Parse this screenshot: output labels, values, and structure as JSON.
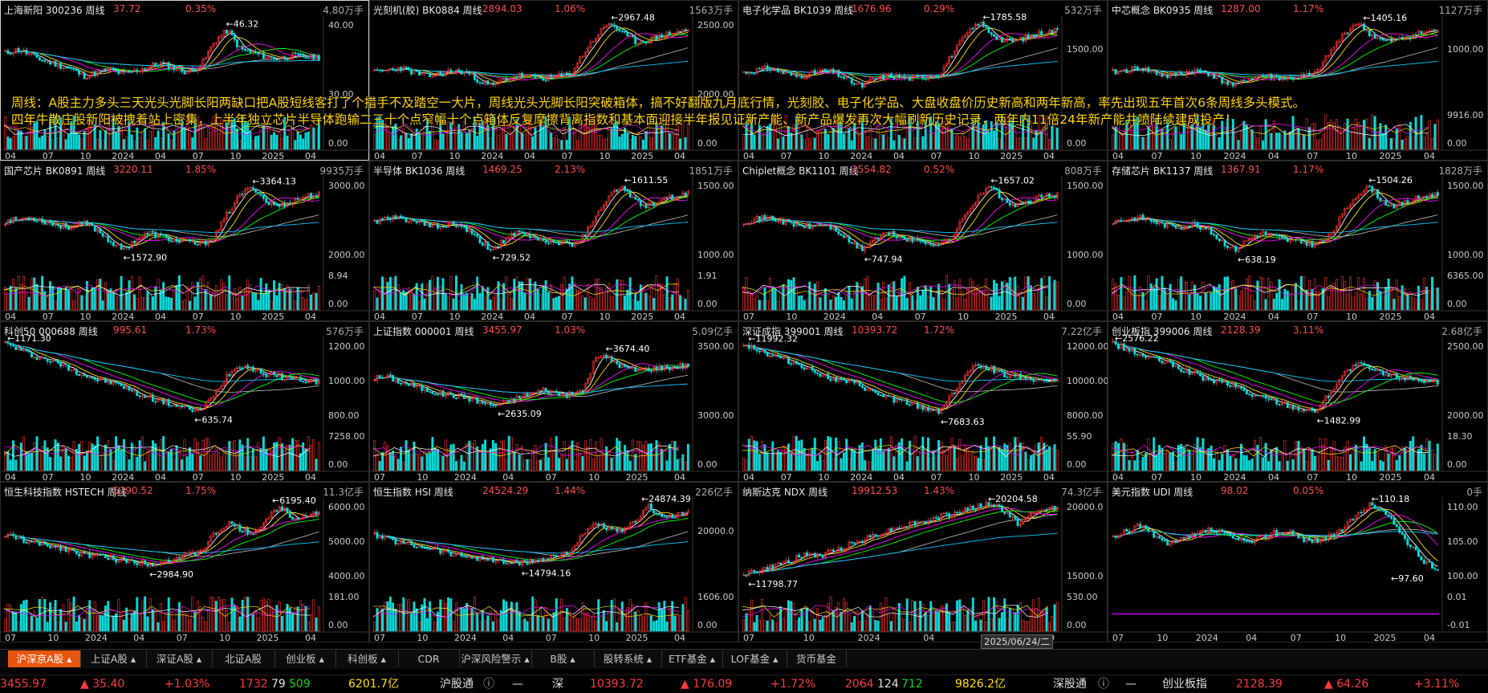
{
  "colors": {
    "up": "#ff3030",
    "down": "#00dcdc",
    "ma5": "#ffffff",
    "ma10": "#ffe000",
    "ma20": "#ff00ff",
    "ma30": "#00ff00",
    "ma60": "#aaaaaa",
    "ma120": "#00c8ff",
    "overlay_text": "#ffd400",
    "active_tab": "#e8550f"
  },
  "overlay": {
    "line1": "周线：A股主力多头三天光头光脚长阳两缺口把A股短线客打了个措手不及踏空一大片，周线光头光脚长阳突破箱体，搞不好翻版九月底行情，光刻胶、电子化学品、大盘收盘价历史新高和两年新高，率先出现五年首次6条周线多头模式。",
    "line2": "四年牛散庄股新阳被拽着站上密集，上半年独立芯片半导体跑输二三十个点窄幅十个点箱体反复摩擦背离指数和基本面迎接半年报见证新产能、新产品爆发再次大幅刷新历史记录，两年内11倍24年新产能井喷陆续建成投产！"
  },
  "panels": [
    {
      "name": "上海新阳  300236  周线",
      "price": "37.72",
      "pct": "0.35%",
      "vol": "4.80万手",
      "axis": [
        "40.00",
        "30.00"
      ],
      "vol_axis": [
        "0.00"
      ],
      "hi_label": "46.32",
      "lo_label": "",
      "x_labels": [
        "04",
        "07",
        "10",
        "2024",
        "04",
        "07",
        "10",
        "2025",
        "04"
      ],
      "shape": "a",
      "seed": 11
    },
    {
      "name": "光刻机(胶)  BK0884  周线",
      "price": "2894.03",
      "pct": "1.06%",
      "vol": "1563万手",
      "axis": [
        "2500.00",
        "2000.00"
      ],
      "vol_axis": [
        "0.00"
      ],
      "hi_label": "2967.48",
      "lo_label": "",
      "x_labels": [
        "04",
        "07",
        "10",
        "2024",
        "04",
        "07",
        "10",
        "2025",
        "04"
      ],
      "shape": "b",
      "seed": 23
    },
    {
      "name": "电子化学品  BK1039  周线",
      "price": "1676.96",
      "pct": "0.29%",
      "vol": "532万手",
      "axis": [
        "1500.00"
      ],
      "vol_axis": [
        "0.00"
      ],
      "hi_label": "1785.58",
      "lo_label": "",
      "x_labels": [
        "04",
        "07",
        "10",
        "2024",
        "04",
        "07",
        "10",
        "2025",
        "04"
      ],
      "shape": "b",
      "seed": 31
    },
    {
      "name": "中芯概念  BK0935  周线",
      "price": "1287.00",
      "pct": "1.17%",
      "vol": "1127万手",
      "axis": [
        "1000.00"
      ],
      "vol_axis": [
        "9916.00",
        "0.00"
      ],
      "hi_label": "1405.16",
      "lo_label": "",
      "x_labels": [
        "04",
        "07",
        "10",
        "2024",
        "04",
        "07",
        "10",
        "2025",
        "04"
      ],
      "shape": "b",
      "seed": 41
    },
    {
      "name": "国产芯片  BK0891  周线",
      "price": "3220.11",
      "pct": "1.85%",
      "vol": "9935万手",
      "axis": [
        "3000.00",
        "2000.00"
      ],
      "vol_axis": [
        "8.94",
        "0.00"
      ],
      "hi_label": "3364.13",
      "lo_label": "1572.90",
      "x_labels": [
        "04",
        "07",
        "10",
        "2024",
        "04",
        "07",
        "10",
        "2025",
        "04"
      ],
      "shape": "c",
      "seed": 53
    },
    {
      "name": "半导体  BK1036  周线",
      "price": "1469.25",
      "pct": "2.13%",
      "vol": "1851万手",
      "axis": [
        "1500.00",
        "1000.00"
      ],
      "vol_axis": [
        "1.91",
        "0.00"
      ],
      "hi_label": "1611.55",
      "lo_label": "729.52",
      "x_labels": [
        "04",
        "07",
        "10",
        "2024",
        "04",
        "07",
        "10",
        "2025",
        "04"
      ],
      "shape": "c",
      "seed": 61
    },
    {
      "name": "Chiplet概念  BK1101  周线",
      "price": "1554.82",
      "pct": "0.52%",
      "vol": "808万手",
      "axis": [
        "1500.00",
        "1000.00"
      ],
      "vol_axis": [
        "0.00"
      ],
      "hi_label": "1657.02",
      "lo_label": "747.94",
      "x_labels": [
        "07",
        "10",
        "2024",
        "04",
        "07",
        "10",
        "2025",
        "04"
      ],
      "shape": "c",
      "seed": 71
    },
    {
      "name": "存储芯片  BK1137  周线",
      "price": "1367.91",
      "pct": "1.17%",
      "vol": "1828万手",
      "axis": [
        "1500.00",
        "1000.00"
      ],
      "vol_axis": [
        "6365.00",
        "0.00"
      ],
      "hi_label": "1504.26",
      "lo_label": "638.19",
      "x_labels": [
        "04",
        "07",
        "10",
        "2024",
        "04",
        "07",
        "10",
        "2025",
        "04"
      ],
      "shape": "c",
      "seed": 83
    },
    {
      "name": "科创50  000688  周线",
      "price": "995.61",
      "pct": "1.73%",
      "vol": "576万手",
      "axis": [
        "1200.00",
        "1000.00",
        "800.00"
      ],
      "vol_axis": [
        "7258.00",
        "0.00"
      ],
      "hi_label": "1171.30",
      "lo_label": "635.74",
      "x_labels": [
        "04",
        "07",
        "10",
        "2024",
        "04",
        "07",
        "10",
        "2025",
        "04"
      ],
      "shape": "d",
      "seed": 97
    },
    {
      "name": "上证指数  000001  周线",
      "price": "3455.97",
      "pct": "1.03%",
      "vol": "5.09亿手",
      "axis": [
        "3500.00",
        "3000.00"
      ],
      "vol_axis": [
        "0.00"
      ],
      "hi_label": "3674.40",
      "lo_label": "2635.09",
      "x_labels": [
        "07",
        "10",
        "2024",
        "04",
        "07",
        "10",
        "2025",
        "04"
      ],
      "shape": "e",
      "seed": 101
    },
    {
      "name": "深证成指  399001  周线",
      "price": "10393.72",
      "pct": "1.72%",
      "vol": "7.22亿手",
      "axis": [
        "12000.00",
        "10000.00",
        "8000.00"
      ],
      "vol_axis": [
        "55.90",
        "0.00"
      ],
      "hi_label": "11992.32",
      "lo_label": "7683.63",
      "x_labels": [
        "04",
        "07",
        "10",
        "2024",
        "04",
        "07",
        "10",
        "2025",
        "04"
      ],
      "shape": "d",
      "seed": 113
    },
    {
      "name": "创业板指  399006  周线",
      "price": "2128.39",
      "pct": "3.11%",
      "vol": "2.68亿手",
      "axis": [
        "2500.00",
        "2000.00"
      ],
      "vol_axis": [
        "18.30",
        "0.00"
      ],
      "hi_label": "2576.22",
      "lo_label": "1482.99",
      "x_labels": [
        "04",
        "07",
        "10",
        "2024",
        "04",
        "07",
        "10",
        "2025",
        "04"
      ],
      "shape": "d",
      "seed": 127
    },
    {
      "name": "恒生科技指数  HSTECH  周线",
      "price": "5390.52",
      "pct": "1.75%",
      "vol": "11.3亿手",
      "axis": [
        "6000.00",
        "5000.00",
        "4000.00"
      ],
      "vol_axis": [
        "181.00",
        "0.00"
      ],
      "hi_label": "6195.40",
      "lo_label": "2984.90",
      "x_labels": [
        "07",
        "10",
        "2024",
        "04",
        "07",
        "10",
        "2025",
        "04"
      ],
      "shape": "f",
      "seed": 131
    },
    {
      "name": "恒生指数  HSI  周线",
      "price": "24524.29",
      "pct": "1.44%",
      "vol": "226亿手",
      "axis": [
        "20000.0"
      ],
      "vol_axis": [
        "1606.00",
        "0.00"
      ],
      "hi_label": "24874.39",
      "lo_label": "14794.16",
      "x_labels": [
        "07",
        "10",
        "2024",
        "04",
        "07",
        "10",
        "2025",
        "04"
      ],
      "shape": "f",
      "seed": 139
    },
    {
      "name": "纳斯达克  NDX  周线",
      "price": "19912.53",
      "pct": "1.43%",
      "vol": "74.3亿手",
      "axis": [
        "20000.0",
        "15000.0"
      ],
      "vol_axis": [
        "530.00",
        "0.00"
      ],
      "hi_label": "20204.58",
      "lo_label": "11798.77",
      "x_labels": [
        "07",
        "10",
        "2024",
        "04",
        "07",
        "10"
      ],
      "shape": "g",
      "seed": 149
    },
    {
      "name": "美元指数  UDI  周线",
      "price": "98.02",
      "pct": "0.05%",
      "vol": "0手",
      "axis": [
        "110.00",
        "105.00",
        "100.00"
      ],
      "vol_axis": [
        "0.01",
        "-0.01"
      ],
      "hi_label": "110.18",
      "lo_label": "97.60",
      "x_labels": [
        "07",
        "10",
        "2024",
        "04",
        "07",
        "10",
        "2025",
        "04"
      ],
      "shape": "h",
      "seed": 157
    }
  ],
  "date_box": "2025/06/24/二",
  "tabs": [
    "沪深京A股 ▴",
    "上证A股 ▴",
    "深证A股 ▴",
    "北证A股",
    "创业板 ▴",
    "科创板 ▴",
    "CDR",
    "沪深风险警示 ▴",
    "B股 ▴",
    "股转系统 ▴",
    "ETF基金 ▴",
    "LOF基金 ▴",
    "货币基金"
  ],
  "status": {
    "sh_price": "3455.97",
    "sh_change": "▲ 35.40",
    "sh_pct": "+1.03%",
    "sh_up": "1732",
    "sh_flat": "79",
    "sh_down": "509",
    "sh_amount": "6201.7亿",
    "hgt_label": "沪股通",
    "hgt_value": "—",
    "sz_label": "深",
    "sz_price": "10393.72",
    "sz_change": "▲ 176.09",
    "sz_pct": "+1.72%",
    "sz_up": "2064",
    "sz_flat": "124",
    "sz_down": "712",
    "sz_amount": "9826.2亿",
    "sgt_label": "深股通",
    "sgt_value": "—",
    "cyb_label": "创业板指",
    "cyb_price": "2128.39",
    "cyb_change": "▲ 64.26",
    "cyb_pct": "+3.11%"
  }
}
